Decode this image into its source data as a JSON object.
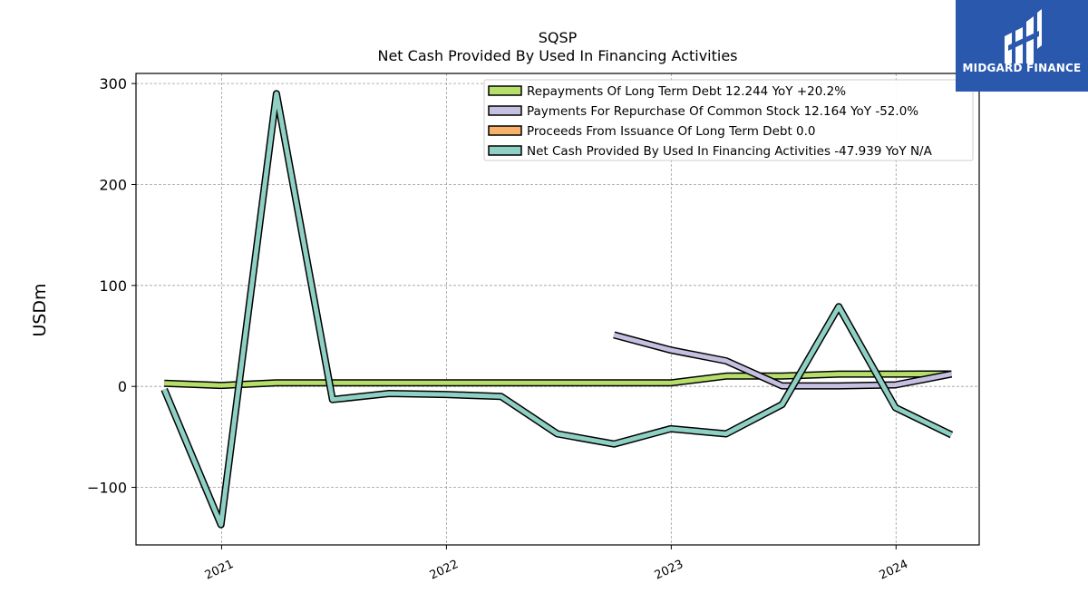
{
  "chart_data": {
    "type": "line",
    "title": "SQSP",
    "subtitle": "Net Cash Provided By Used In Financing Activities",
    "xlabel": "",
    "ylabel": "USDm",
    "x_ticks": [
      "2021",
      "2022",
      "2023",
      "2024"
    ],
    "y_ticks": [
      "300",
      "200",
      "100",
      "0",
      "−100"
    ],
    "ylim": [
      -157,
      310
    ],
    "xlim": [
      "2020-08-15",
      "2024-05-15"
    ],
    "grid": true,
    "legend_position": "top-right",
    "series": [
      {
        "name": "Repayments Of Long Term Debt",
        "legend_label": "Repayments Of Long Term Debt  12.244 YoY +20.2%",
        "color": "#b5de6a",
        "x": [
          "2020-09-30",
          "2020-12-31",
          "2021-03-31",
          "2021-06-30",
          "2021-09-30",
          "2021-12-31",
          "2022-03-31",
          "2022-06-30",
          "2022-09-30",
          "2022-12-31",
          "2023-03-31",
          "2023-06-30",
          "2023-09-30",
          "2023-12-31",
          "2024-03-31"
        ],
        "values": [
          3.0,
          1.0,
          3.5,
          3.5,
          3.5,
          3.5,
          3.5,
          3.5,
          3.5,
          3.5,
          10.2,
          10.2,
          12.2,
          12.2,
          12.244
        ]
      },
      {
        "name": "Payments For Repurchase Of Common Stock",
        "legend_label": "Payments For Repurchase Of Common Stock  12.164 YoY -52.0%",
        "color": "#c5bfe0",
        "x": [
          "2022-09-30",
          "2022-12-31",
          "2023-03-31",
          "2023-06-30",
          "2023-09-30",
          "2023-12-31",
          "2024-03-31"
        ],
        "values": [
          51,
          36,
          25.3,
          0.5,
          0.5,
          1.5,
          12.164
        ]
      },
      {
        "name": "Proceeds From Issuance Of Long Term Debt",
        "legend_label": "Proceeds From Issuance Of Long Term Debt  0.0",
        "color": "#f6b26b",
        "x": [],
        "values": []
      },
      {
        "name": "Net Cash Provided By Used In Financing Activities",
        "legend_label": "Net Cash Provided By Used In Financing Activities  -47.939 YoY N/A",
        "color": "#8fd0c4",
        "x": [
          "2020-09-30",
          "2020-12-31",
          "2021-03-31",
          "2021-06-30",
          "2021-09-30",
          "2021-12-31",
          "2022-03-31",
          "2022-06-30",
          "2022-09-30",
          "2022-12-31",
          "2023-03-31",
          "2023-06-30",
          "2023-09-30",
          "2023-12-31",
          "2024-03-31"
        ],
        "values": [
          -3,
          -137,
          290,
          -13,
          -7,
          -8,
          -10,
          -47,
          -57,
          -42,
          -47,
          -18,
          79,
          -21,
          -47.939
        ]
      }
    ]
  },
  "logo": {
    "text": "MIDGARD FINANCE"
  }
}
